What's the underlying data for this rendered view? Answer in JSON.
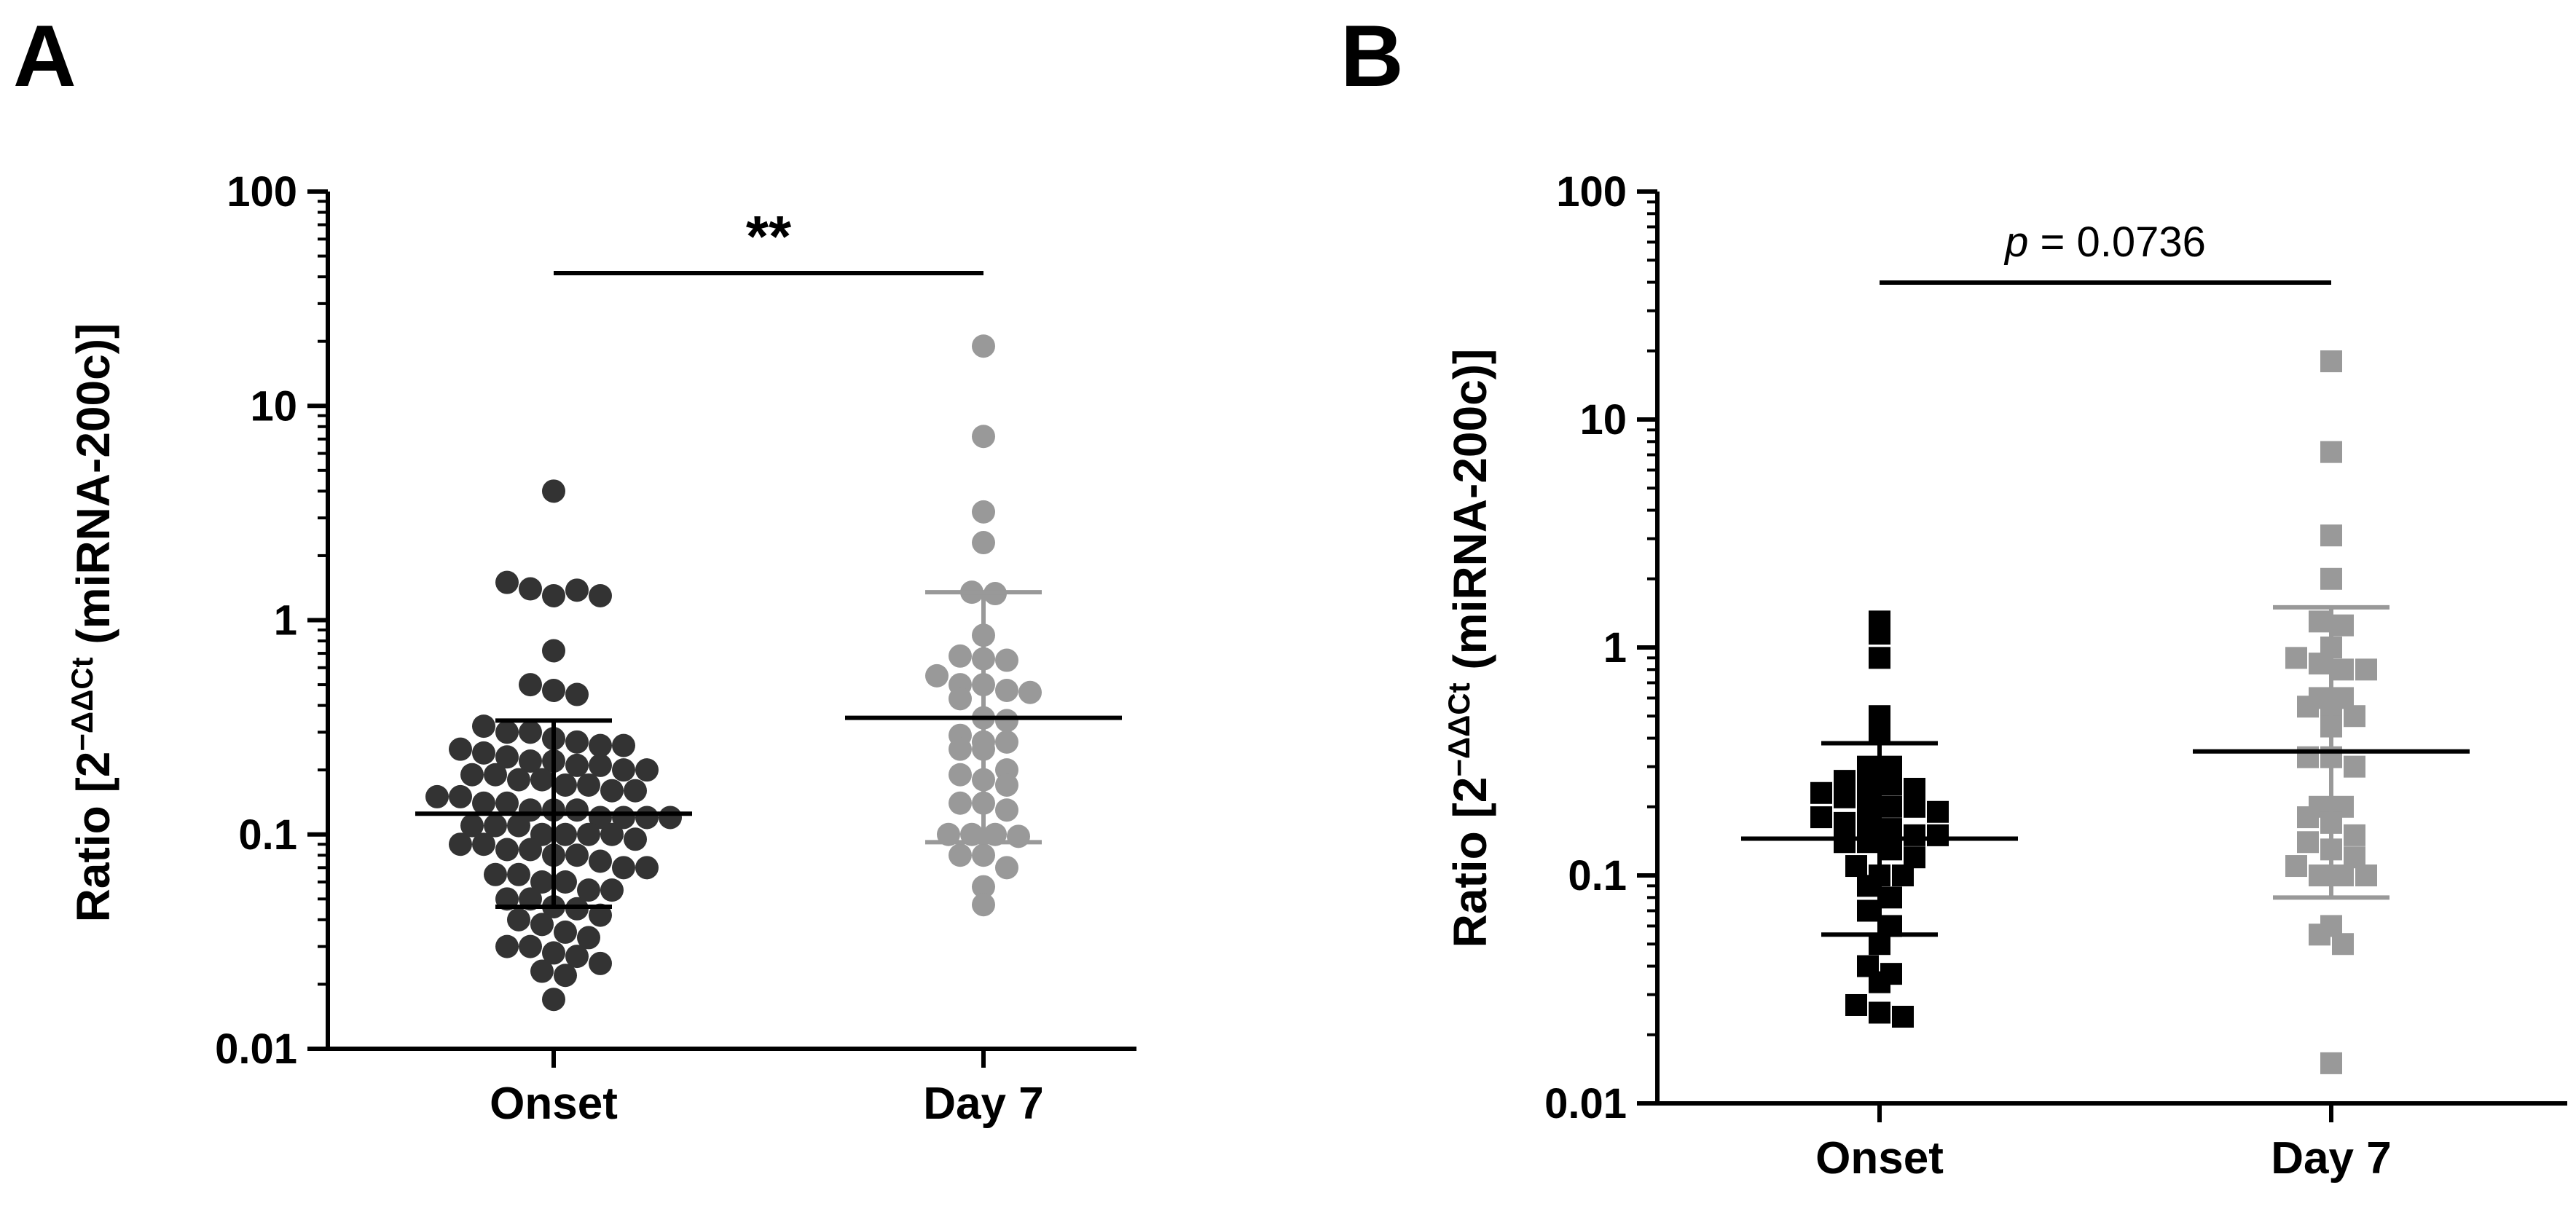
{
  "chart_data": [
    {
      "panel": "A",
      "type": "scatter",
      "marker": "circle",
      "ylabel_main": "Ratio [2",
      "ylabel_sup": "−ΔΔCt",
      "ylabel_tail": " (miRNA-200c)]",
      "yscale": "log",
      "ylim": [
        0.01,
        100
      ],
      "yticks": [
        0.01,
        0.1,
        1,
        10,
        100
      ],
      "ytick_labels": [
        "0.01",
        "0.1",
        "1",
        "10",
        "100"
      ],
      "categories": [
        "Onset",
        "Day 7"
      ],
      "colors": [
        "#333333",
        "#999999"
      ],
      "significance": "**",
      "series": [
        {
          "name": "Onset",
          "mean": 0.125,
          "error_low": 0.046,
          "error_high": 0.34,
          "values": [
            4.0,
            1.5,
            1.4,
            1.3,
            1.38,
            1.3,
            0.72,
            0.5,
            0.47,
            0.45,
            0.32,
            0.3,
            0.3,
            0.28,
            0.27,
            0.26,
            0.26,
            0.25,
            0.24,
            0.23,
            0.22,
            0.22,
            0.21,
            0.21,
            0.2,
            0.2,
            0.19,
            0.19,
            0.18,
            0.18,
            0.17,
            0.17,
            0.16,
            0.16,
            0.15,
            0.15,
            0.14,
            0.14,
            0.13,
            0.13,
            0.13,
            0.12,
            0.12,
            0.12,
            0.12,
            0.11,
            0.11,
            0.11,
            0.1,
            0.1,
            0.1,
            0.1,
            0.095,
            0.09,
            0.09,
            0.085,
            0.085,
            0.08,
            0.08,
            0.075,
            0.07,
            0.07,
            0.065,
            0.065,
            0.06,
            0.06,
            0.055,
            0.055,
            0.05,
            0.05,
            0.046,
            0.045,
            0.042,
            0.04,
            0.038,
            0.035,
            0.033,
            0.03,
            0.03,
            0.028,
            0.027,
            0.025,
            0.023,
            0.022,
            0.017
          ]
        },
        {
          "name": "Day 7",
          "mean": 0.35,
          "error_low": 0.092,
          "error_high": 1.35,
          "values": [
            19,
            7.2,
            3.2,
            2.3,
            1.35,
            1.33,
            0.85,
            0.68,
            0.66,
            0.65,
            0.55,
            0.5,
            0.5,
            0.47,
            0.46,
            0.43,
            0.35,
            0.34,
            0.29,
            0.27,
            0.27,
            0.25,
            0.25,
            0.2,
            0.19,
            0.18,
            0.17,
            0.14,
            0.14,
            0.13,
            0.1,
            0.1,
            0.1,
            0.098,
            0.08,
            0.08,
            0.07,
            0.057,
            0.047
          ]
        }
      ]
    },
    {
      "panel": "B",
      "type": "scatter",
      "marker": "square",
      "ylabel_main": "Ratio [2",
      "ylabel_sup": "−ΔΔCt",
      "ylabel_tail": " (miRNA-200c)]",
      "yscale": "log",
      "ylim": [
        0.01,
        100
      ],
      "yticks": [
        0.01,
        0.1,
        1,
        10,
        100
      ],
      "ytick_labels": [
        "0.01",
        "0.1",
        "1",
        "10",
        "100"
      ],
      "categories": [
        "Onset",
        "Day 7"
      ],
      "colors": [
        "#000000",
        "#999999"
      ],
      "significance_p_label": "p",
      "significance_value": " = 0.0736",
      "series": [
        {
          "name": "Onset",
          "mean": 0.145,
          "error_low": 0.055,
          "error_high": 0.38,
          "values": [
            1.3,
            1.15,
            0.9,
            0.5,
            0.42,
            0.3,
            0.3,
            0.26,
            0.25,
            0.25,
            0.24,
            0.23,
            0.22,
            0.21,
            0.2,
            0.2,
            0.19,
            0.18,
            0.17,
            0.17,
            0.16,
            0.15,
            0.15,
            0.14,
            0.14,
            0.13,
            0.12,
            0.11,
            0.1,
            0.1,
            0.09,
            0.08,
            0.07,
            0.06,
            0.05,
            0.04,
            0.037,
            0.034,
            0.027,
            0.025,
            0.024
          ]
        },
        {
          "name": "Day 7",
          "mean": 0.35,
          "error_low": 0.08,
          "error_high": 1.5,
          "values": [
            18,
            7.2,
            3.1,
            2.0,
            1.3,
            1.25,
            1.0,
            0.9,
            0.85,
            0.8,
            0.8,
            0.6,
            0.6,
            0.55,
            0.5,
            0.5,
            0.45,
            0.33,
            0.33,
            0.3,
            0.2,
            0.2,
            0.18,
            0.17,
            0.15,
            0.14,
            0.13,
            0.12,
            0.11,
            0.1,
            0.1,
            0.1,
            0.06,
            0.055,
            0.05,
            0.015
          ]
        }
      ]
    }
  ]
}
